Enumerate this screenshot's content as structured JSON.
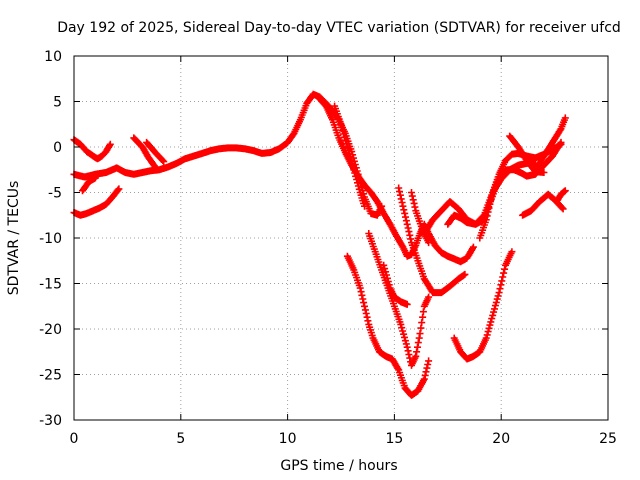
{
  "chart_data": {
    "type": "scatter",
    "title": "Day 192 of 2025, Sidereal Day-to-day VTEC variation (SDTVAR) for receiver ufcd",
    "xlabel": "GPS time / hours",
    "ylabel": "SDTVAR / TECUs",
    "xlim": [
      0,
      25
    ],
    "ylim": [
      -30,
      10
    ],
    "xticks": [
      0,
      5,
      10,
      15,
      20,
      25
    ],
    "yticks": [
      -30,
      -25,
      -20,
      -15,
      -10,
      -5,
      0,
      5,
      10
    ],
    "grid": true,
    "marker": "plus",
    "color": "#ff0000",
    "series": [
      {
        "values": [
          [
            0.0,
            0.8
          ],
          [
            0.3,
            0.3
          ],
          [
            0.6,
            -0.5
          ],
          [
            0.9,
            -1.0
          ],
          [
            1.1,
            -1.3
          ],
          [
            1.3,
            -1.0
          ],
          [
            1.5,
            -0.5
          ],
          [
            1.7,
            0.3
          ]
        ]
      },
      {
        "values": [
          [
            0.0,
            -3.0
          ],
          [
            0.5,
            -3.3
          ],
          [
            1.0,
            -3.0
          ],
          [
            1.5,
            -2.8
          ],
          [
            2.0,
            -2.3
          ],
          [
            2.4,
            -2.8
          ],
          [
            2.8,
            -3.0
          ],
          [
            3.2,
            -2.8
          ],
          [
            3.6,
            -2.6
          ],
          [
            4.0,
            -2.5
          ],
          [
            4.4,
            -2.2
          ],
          [
            4.8,
            -1.8
          ],
          [
            5.2,
            -1.3
          ],
          [
            5.6,
            -1.0
          ],
          [
            6.0,
            -0.7
          ],
          [
            6.4,
            -0.4
          ],
          [
            6.8,
            -0.2
          ],
          [
            7.2,
            -0.1
          ],
          [
            7.6,
            -0.1
          ],
          [
            8.0,
            -0.2
          ],
          [
            8.4,
            -0.4
          ],
          [
            8.8,
            -0.7
          ],
          [
            9.2,
            -0.6
          ],
          [
            9.6,
            -0.2
          ],
          [
            10.0,
            0.5
          ],
          [
            10.3,
            1.5
          ],
          [
            10.6,
            3.0
          ],
          [
            10.9,
            4.8
          ],
          [
            11.2,
            5.8
          ],
          [
            11.5,
            5.5
          ],
          [
            11.8,
            4.8
          ],
          [
            12.1,
            4.0
          ],
          [
            12.4,
            3.0
          ],
          [
            12.7,
            1.5
          ],
          [
            13.0,
            -0.5
          ],
          [
            13.3,
            -3.0
          ],
          [
            13.6,
            -5.5
          ],
          [
            13.9,
            -7.3
          ],
          [
            14.2,
            -7.5
          ],
          [
            14.4,
            -6.5
          ]
        ]
      },
      {
        "values": [
          [
            0.0,
            -7.2
          ],
          [
            0.3,
            -7.5
          ],
          [
            0.6,
            -7.3
          ],
          [
            0.9,
            -7.0
          ],
          [
            1.2,
            -6.7
          ],
          [
            1.5,
            -6.3
          ],
          [
            1.8,
            -5.5
          ],
          [
            2.1,
            -4.6
          ]
        ]
      },
      {
        "values": [
          [
            0.4,
            -4.8
          ],
          [
            0.7,
            -3.8
          ],
          [
            1.0,
            -3.4
          ]
        ]
      },
      {
        "values": [
          [
            2.8,
            1.0
          ],
          [
            3.2,
            0.0
          ],
          [
            3.5,
            -1.2
          ],
          [
            3.8,
            -2.2
          ]
        ]
      },
      {
        "values": [
          [
            3.4,
            0.5
          ],
          [
            3.8,
            -0.6
          ],
          [
            4.2,
            -1.6
          ]
        ]
      },
      {
        "values": [
          [
            11.5,
            5.3
          ],
          [
            11.8,
            4.5
          ],
          [
            12.1,
            3.0
          ],
          [
            12.4,
            1.0
          ],
          [
            12.7,
            -0.6
          ],
          [
            13.0,
            -2.0
          ],
          [
            13.3,
            -3.2
          ],
          [
            13.6,
            -4.2
          ],
          [
            13.9,
            -5.0
          ],
          [
            14.2,
            -6.0
          ],
          [
            14.5,
            -7.3
          ],
          [
            14.8,
            -8.5
          ],
          [
            15.1,
            -9.8
          ],
          [
            15.4,
            -11.0
          ],
          [
            15.6,
            -12.0
          ],
          [
            15.8,
            -11.8
          ],
          [
            16.0,
            -10.8
          ],
          [
            16.2,
            -9.5
          ],
          [
            16.4,
            -8.5
          ],
          [
            16.6,
            -9.5
          ],
          [
            16.9,
            -10.8
          ],
          [
            17.2,
            -11.6
          ],
          [
            17.5,
            -12.0
          ],
          [
            17.8,
            -12.3
          ],
          [
            18.1,
            -12.6
          ],
          [
            18.4,
            -12.2
          ],
          [
            18.7,
            -11.0
          ]
        ]
      },
      {
        "values": [
          [
            12.2,
            4.5
          ],
          [
            12.5,
            2.5
          ],
          [
            12.8,
            0.0
          ],
          [
            13.1,
            -2.5
          ],
          [
            13.4,
            -5.0
          ],
          [
            13.6,
            -6.5
          ]
        ]
      },
      {
        "values": [
          [
            12.8,
            -12.0
          ],
          [
            13.1,
            -13.5
          ],
          [
            13.4,
            -15.5
          ],
          [
            13.6,
            -17.5
          ],
          [
            13.8,
            -19.5
          ],
          [
            14.0,
            -21.0
          ],
          [
            14.3,
            -22.5
          ],
          [
            14.6,
            -23.0
          ],
          [
            14.9,
            -23.3
          ],
          [
            15.2,
            -24.5
          ],
          [
            15.5,
            -26.5
          ],
          [
            15.8,
            -27.3
          ],
          [
            16.1,
            -26.8
          ],
          [
            16.4,
            -25.5
          ],
          [
            16.6,
            -23.5
          ]
        ]
      },
      {
        "values": [
          [
            13.8,
            -9.5
          ],
          [
            14.1,
            -11.5
          ],
          [
            14.4,
            -13.5
          ],
          [
            14.7,
            -15.5
          ],
          [
            15.0,
            -17.5
          ],
          [
            15.3,
            -19.5
          ],
          [
            15.6,
            -22.0
          ],
          [
            15.8,
            -24.0
          ],
          [
            16.0,
            -23.0
          ],
          [
            16.2,
            -20.5
          ],
          [
            16.4,
            -17.5
          ],
          [
            16.6,
            -16.5
          ]
        ]
      },
      {
        "values": [
          [
            14.5,
            -13.0
          ],
          [
            14.8,
            -15.5
          ],
          [
            15.0,
            -16.5
          ],
          [
            15.3,
            -17.0
          ],
          [
            15.6,
            -17.3
          ]
        ]
      },
      {
        "values": [
          [
            15.2,
            -4.5
          ],
          [
            15.4,
            -6.5
          ],
          [
            15.6,
            -8.5
          ],
          [
            15.8,
            -10.5
          ],
          [
            16.1,
            -12.5
          ],
          [
            16.4,
            -14.5
          ],
          [
            16.8,
            -16.0
          ],
          [
            17.2,
            -16.0
          ],
          [
            17.6,
            -15.3
          ],
          [
            18.0,
            -14.5
          ],
          [
            18.3,
            -14.0
          ]
        ]
      },
      {
        "values": [
          [
            15.8,
            -5.0
          ],
          [
            16.0,
            -7.0
          ],
          [
            16.3,
            -9.0
          ],
          [
            16.6,
            -10.5
          ]
        ]
      },
      {
        "values": [
          [
            16.4,
            -9.5
          ],
          [
            16.8,
            -8.0
          ],
          [
            17.2,
            -7.0
          ],
          [
            17.6,
            -6.0
          ],
          [
            18.0,
            -6.8
          ],
          [
            18.4,
            -8.0
          ],
          [
            18.8,
            -8.5
          ],
          [
            19.2,
            -7.5
          ],
          [
            19.6,
            -5.0
          ],
          [
            20.0,
            -3.5
          ],
          [
            20.4,
            -2.5
          ],
          [
            20.8,
            -2.0
          ],
          [
            21.2,
            -1.8
          ],
          [
            21.6,
            -1.8
          ]
        ]
      },
      {
        "values": [
          [
            17.5,
            -8.5
          ],
          [
            17.8,
            -7.5
          ],
          [
            18.1,
            -7.8
          ],
          [
            18.4,
            -8.3
          ],
          [
            18.8,
            -8.5
          ],
          [
            19.2,
            -8.0
          ],
          [
            19.5,
            -6.0
          ],
          [
            19.8,
            -4.0
          ],
          [
            20.0,
            -2.8
          ],
          [
            20.3,
            -2.5
          ],
          [
            20.6,
            -2.5
          ],
          [
            20.9,
            -2.8
          ],
          [
            21.2,
            -3.2
          ],
          [
            21.6,
            -3.0
          ],
          [
            22.0,
            -2.0
          ],
          [
            22.4,
            -1.0
          ],
          [
            22.8,
            0.5
          ]
        ]
      },
      {
        "values": [
          [
            17.8,
            -21.0
          ],
          [
            18.1,
            -22.5
          ],
          [
            18.4,
            -23.3
          ],
          [
            18.7,
            -23.0
          ],
          [
            19.0,
            -22.5
          ],
          [
            19.3,
            -21.0
          ],
          [
            19.6,
            -18.5
          ],
          [
            19.9,
            -16.0
          ],
          [
            20.2,
            -13.0
          ],
          [
            20.5,
            -11.5
          ]
        ]
      },
      {
        "values": [
          [
            19.0,
            -10.0
          ],
          [
            19.3,
            -8.0
          ],
          [
            19.6,
            -5.0
          ],
          [
            19.9,
            -3.0
          ],
          [
            20.2,
            -1.5
          ],
          [
            20.5,
            -0.8
          ],
          [
            20.8,
            -0.7
          ],
          [
            21.2,
            -1.0
          ],
          [
            21.6,
            -1.2
          ],
          [
            22.0,
            -0.8
          ],
          [
            22.4,
            -0.3
          ],
          [
            22.8,
            0.3
          ]
        ]
      },
      {
        "values": [
          [
            20.4,
            1.2
          ],
          [
            20.8,
            0.0
          ],
          [
            21.2,
            -1.5
          ],
          [
            21.6,
            -2.7
          ],
          [
            22.0,
            -2.8
          ]
        ]
      },
      {
        "values": [
          [
            21.0,
            -7.5
          ],
          [
            21.4,
            -7.0
          ],
          [
            21.8,
            -6.0
          ],
          [
            22.2,
            -5.2
          ],
          [
            22.5,
            -5.8
          ],
          [
            22.9,
            -6.8
          ]
        ]
      },
      {
        "values": [
          [
            21.6,
            -2.5
          ],
          [
            22.0,
            -1.0
          ],
          [
            22.4,
            0.5
          ],
          [
            22.8,
            2.0
          ],
          [
            23.0,
            3.2
          ]
        ]
      },
      {
        "values": [
          [
            22.6,
            -6.0
          ],
          [
            22.8,
            -5.2
          ],
          [
            23.0,
            -4.8
          ]
        ]
      }
    ]
  }
}
